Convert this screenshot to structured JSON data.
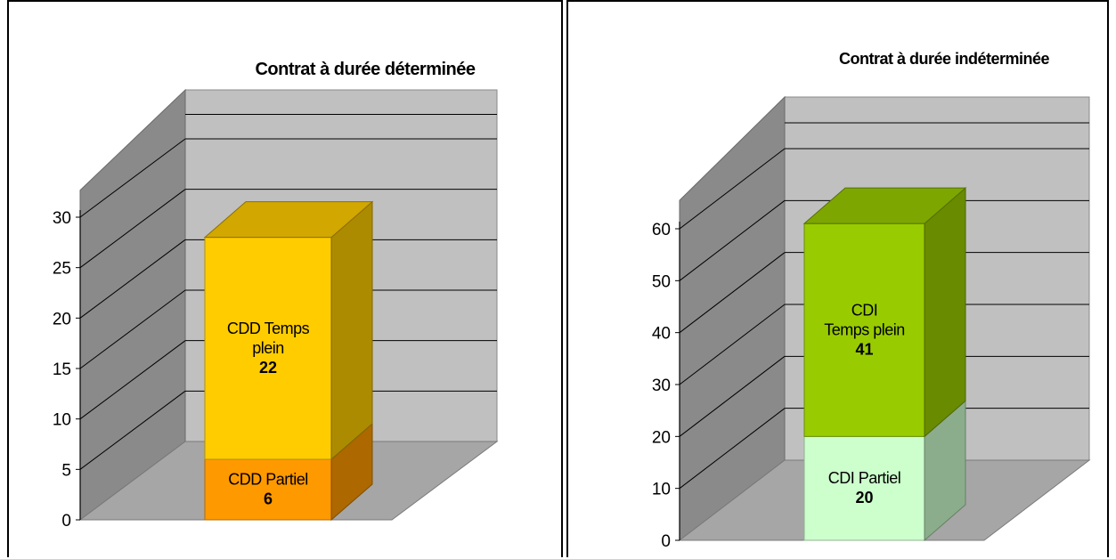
{
  "chart_data": [
    {
      "type": "bar",
      "stacked": true,
      "three_d": true,
      "title": "Contrat à durée déterminée",
      "ylim": [
        0,
        30
      ],
      "yticks": [
        0,
        5,
        10,
        15,
        20,
        25,
        30
      ],
      "grid": true,
      "series": [
        {
          "label": "CDD Partiel",
          "value": 6,
          "color": "#ff9900"
        },
        {
          "label": "CDD Temps plein",
          "value": 22,
          "color": "#ffcc00"
        }
      ]
    },
    {
      "type": "bar",
      "stacked": true,
      "three_d": true,
      "title": "Contrat à durée indéterminée",
      "ylim": [
        0,
        60
      ],
      "yticks": [
        0,
        10,
        20,
        30,
        40,
        50,
        60
      ],
      "grid": true,
      "series": [
        {
          "label": "CDI Partiel",
          "value": 20,
          "color": "#ccffcc"
        },
        {
          "label": "CDI Temps plein",
          "value": 41,
          "color": "#99cc00"
        }
      ]
    }
  ]
}
